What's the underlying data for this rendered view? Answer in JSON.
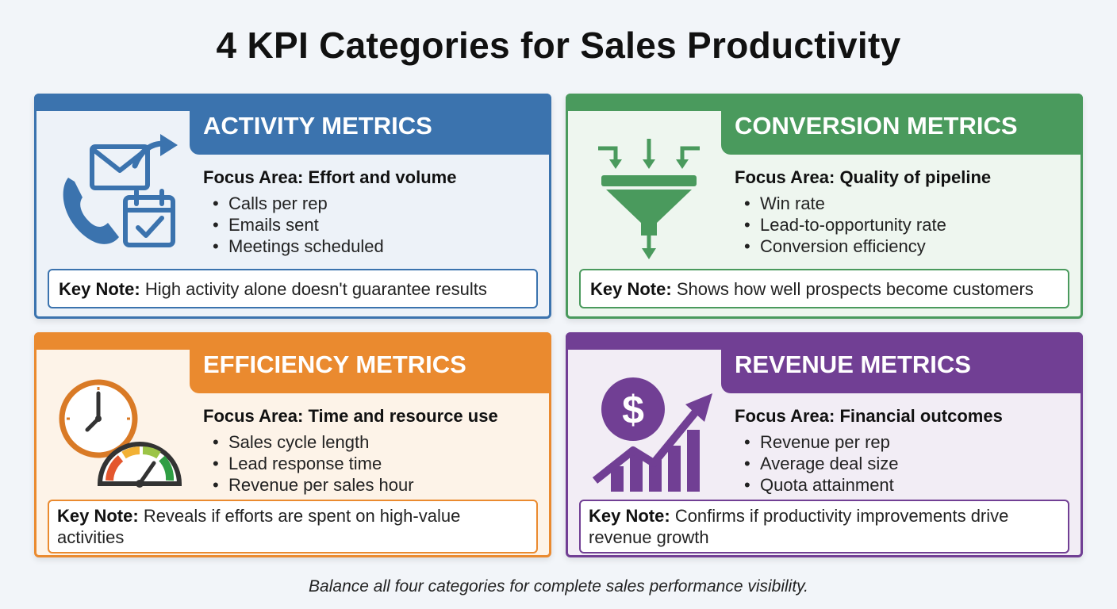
{
  "title": "4 KPI Categories for Sales Productivity",
  "cards": [
    {
      "heading": "ACTIVITY METRICS",
      "focus": "Focus Area: Effort and volume",
      "items": [
        "Calls per rep",
        "Emails sent",
        "Meetings scheduled"
      ],
      "note_label": "Key Note:",
      "note_text": "High activity alone doesn't guarantee results",
      "icon": "phone-email-calendar-icon",
      "color": "#3b73ae"
    },
    {
      "heading": "CONVERSION METRICS",
      "focus": "Focus Area: Quality of pipeline",
      "items": [
        "Win rate",
        "Lead-to-opportunity rate",
        "Conversion efficiency"
      ],
      "note_label": "Key Note:",
      "note_text": "Shows how well prospects become customers",
      "icon": "funnel-icon",
      "color": "#4a9a5d"
    },
    {
      "heading": "EFFICIENCY METRICS",
      "focus": "Focus Area: Time and resource use",
      "items": [
        "Sales cycle length",
        "Lead response time",
        "Revenue per sales hour"
      ],
      "note_label": "Key Note:",
      "note_text": "Reveals if efforts are spent on high-value activities",
      "icon": "clock-gauge-icon",
      "color": "#ea8a2f"
    },
    {
      "heading": "REVENUE METRICS",
      "focus": "Focus Area: Financial outcomes",
      "items": [
        "Revenue per rep",
        "Average deal size",
        "Quota attainment"
      ],
      "note_label": "Key Note:",
      "note_text": "Confirms if productivity improvements drive revenue growth",
      "icon": "dollar-growth-chart-icon",
      "color": "#713f94"
    }
  ],
  "footer": "Balance all four categories for complete sales performance visibility."
}
